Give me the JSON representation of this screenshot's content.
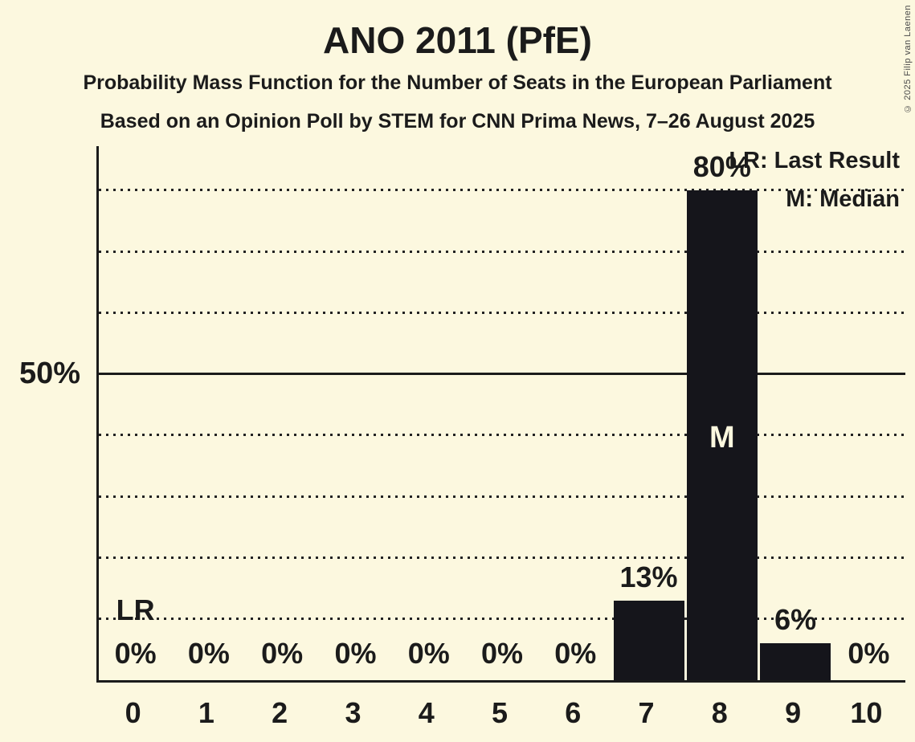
{
  "page": {
    "background": "#FCF8DF",
    "text_color": "#1B1B1B"
  },
  "chart_data": {
    "type": "bar",
    "title": "ANO 2011 (PfE)",
    "subtitle": "Probability Mass Function for the Number of Seats in the European Parliament",
    "source_line": "Based on an Opinion Poll by STEM for CNN Prima News, 7–26 August 2025",
    "xlabel": "",
    "ylabel": "",
    "categories": [
      "0",
      "1",
      "2",
      "3",
      "4",
      "5",
      "6",
      "7",
      "8",
      "9",
      "10"
    ],
    "values": [
      0,
      0,
      0,
      0,
      0,
      0,
      0,
      13,
      80,
      6,
      0
    ],
    "bar_labels": [
      "0%",
      "0%",
      "0%",
      "0%",
      "0%",
      "0%",
      "0%",
      "13%",
      "80%",
      "6%",
      "0%"
    ],
    "ylim": [
      0,
      87.2
    ],
    "y_axis_tick": {
      "value": 50,
      "label": "50%"
    },
    "gridlines": {
      "dotted_percent": [
        10,
        20,
        30,
        40,
        60,
        70,
        80
      ],
      "solid_percent": 50
    },
    "legend": [
      {
        "label": "LR: Last Result"
      },
      {
        "label": "M: Median"
      }
    ],
    "annotations": {
      "last_result_label": "LR",
      "lr_category_index": 0,
      "median_label": "M",
      "median_category_index": 8
    },
    "bar_color": "#15151B",
    "median_text_color": "#FCF8DF",
    "grid_on": true,
    "legend_position": "top-right"
  },
  "copyright": "© 2025 Filip van Laenen"
}
